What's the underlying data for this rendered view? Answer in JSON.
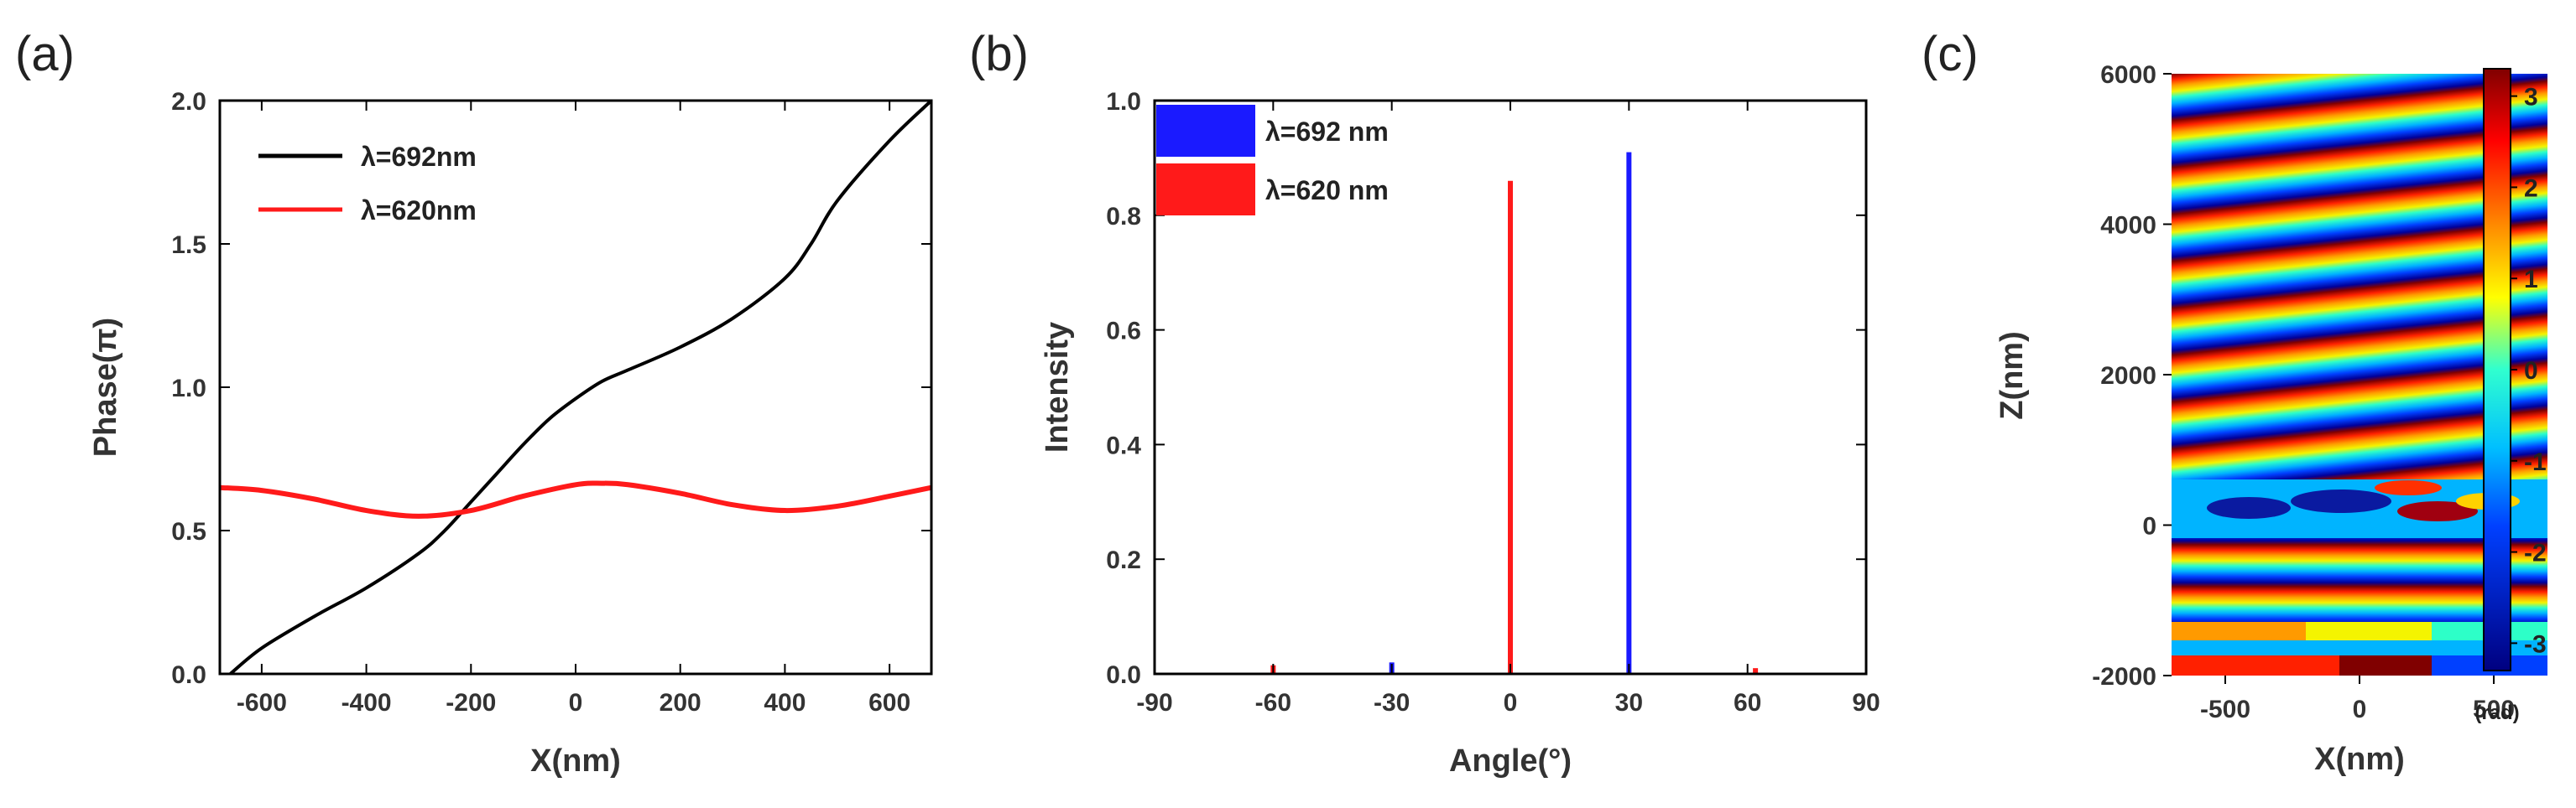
{
  "chart_data": [
    {
      "panel": "(a)",
      "type": "line",
      "xlabel": "X(nm)",
      "ylabel": "Phase(π)",
      "xlim": [
        -680,
        680
      ],
      "ylim": [
        0,
        2.0
      ],
      "xticks": [
        -600,
        -400,
        -200,
        0,
        200,
        400,
        600
      ],
      "yticks": [
        0.0,
        0.5,
        1.0,
        1.5,
        2.0
      ],
      "legend_position": "top-left",
      "series": [
        {
          "name": "λ=692nm",
          "color": "#000000",
          "x": [
            -660,
            -600,
            -500,
            -400,
            -300,
            -250,
            -200,
            -150,
            -100,
            -50,
            0,
            50,
            100,
            200,
            300,
            400,
            450,
            500,
            600,
            680
          ],
          "y": [
            0.0,
            0.09,
            0.2,
            0.3,
            0.42,
            0.5,
            0.6,
            0.7,
            0.8,
            0.89,
            0.96,
            1.02,
            1.06,
            1.14,
            1.24,
            1.38,
            1.5,
            1.65,
            1.86,
            2.0
          ]
        },
        {
          "name": "λ=620nm",
          "color": "#ff1a1a",
          "x": [
            -680,
            -600,
            -500,
            -400,
            -300,
            -200,
            -100,
            0,
            50,
            100,
            200,
            300,
            400,
            500,
            600,
            680
          ],
          "y": [
            0.65,
            0.64,
            0.61,
            0.57,
            0.55,
            0.57,
            0.62,
            0.66,
            0.665,
            0.66,
            0.63,
            0.59,
            0.57,
            0.585,
            0.62,
            0.65
          ]
        }
      ]
    },
    {
      "panel": "(b)",
      "type": "bar",
      "xlabel": "Angle(°)",
      "ylabel": "Intensity",
      "xlim": [
        -90,
        90
      ],
      "ylim": [
        0,
        1.0
      ],
      "xticks": [
        -90,
        -60,
        -30,
        0,
        30,
        60,
        90
      ],
      "yticks": [
        0.0,
        0.2,
        0.4,
        0.6,
        0.8,
        1.0
      ],
      "legend_position": "top-left",
      "series": [
        {
          "name": "λ=692 nm",
          "color": "#1a1aff",
          "x": [
            -30,
            30
          ],
          "values": [
            0.02,
            0.91
          ]
        },
        {
          "name": "λ=620 nm",
          "color": "#ff1a1a",
          "x": [
            -60,
            0,
            62
          ],
          "values": [
            0.015,
            0.86,
            0.01
          ]
        }
      ]
    },
    {
      "panel": "(c)",
      "type": "heatmap",
      "xlabel": "X(nm)",
      "ylabel": "Z(nm)",
      "xlim": [
        -700,
        700
      ],
      "ylim": [
        -2000,
        6000
      ],
      "xticks": [
        -500,
        0,
        500
      ],
      "yticks": [
        -2000,
        0,
        2000,
        4000,
        6000
      ],
      "colorbar": {
        "range": [
          -3.3,
          3.3
        ],
        "ticks": [
          3,
          2,
          1,
          0,
          -1,
          -2,
          -3
        ],
        "unit": "(rad)"
      }
    }
  ]
}
